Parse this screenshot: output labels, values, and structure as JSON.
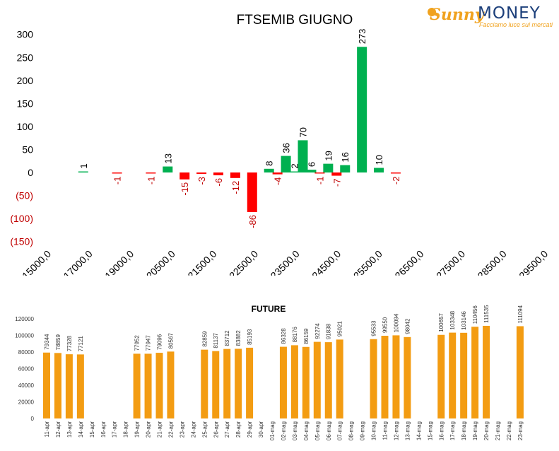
{
  "brand": {
    "logo_script": "Sunny",
    "logo_word": "MONEY",
    "tagline": "Facciamo luce sui mercati"
  },
  "colors": {
    "positive": "#00b050",
    "negative": "#ff0000",
    "future": "#f39c12",
    "text": "#000000",
    "negative_label": "#c00000",
    "logo_orange": "#f0a21e",
    "logo_blue": "#1c3f7a"
  },
  "chart_data": [
    {
      "type": "bar",
      "title": "FTSEMIB GIUGNO",
      "xlabel": "",
      "ylabel": "",
      "ylim": [
        -150,
        300
      ],
      "yticks": [
        300,
        250,
        200,
        150,
        100,
        50,
        0,
        -50,
        -100,
        -150
      ],
      "ytick_labels": [
        "300",
        "250",
        "200",
        "150",
        "100",
        "50",
        "0",
        "(50)",
        "(100)",
        "(150)"
      ],
      "xtick_labels": [
        "15000,0",
        "17000,0",
        "19000,0",
        "20500,0",
        "21500,0",
        "22500,0",
        "23500,0",
        "24500,0",
        "25500,0",
        "26500,0",
        "27500,0",
        "28500,0",
        "29500,0"
      ],
      "grid": false,
      "bars": [
        {
          "label": "1",
          "value": 1,
          "slot": 2
        },
        {
          "label": "-1",
          "value": -1,
          "slot": 4
        },
        {
          "label": "-1",
          "value": -1,
          "slot": 6
        },
        {
          "label": "13",
          "value": 13,
          "slot": 7
        },
        {
          "label": "-15",
          "value": -15,
          "slot": 8
        },
        {
          "label": "-3",
          "value": -3,
          "slot": 9
        },
        {
          "label": "-6",
          "value": -6,
          "slot": 10
        },
        {
          "label": "-12",
          "value": -12,
          "slot": 11
        },
        {
          "label": "-86",
          "value": -86,
          "slot": 12
        },
        {
          "label": "8",
          "value": 8,
          "slot": 13
        },
        {
          "label": "-4",
          "value": -4,
          "slot": 13.5
        },
        {
          "label": "36",
          "value": 36,
          "slot": 14
        },
        {
          "label": "2",
          "value": 2,
          "slot": 14.5
        },
        {
          "label": "70",
          "value": 70,
          "slot": 15
        },
        {
          "label": "6",
          "value": 6,
          "slot": 15.5
        },
        {
          "label": "-1",
          "value": -1,
          "slot": 16
        },
        {
          "label": "19",
          "value": 19,
          "slot": 16.5
        },
        {
          "label": "-7",
          "value": -7,
          "slot": 17
        },
        {
          "label": "16",
          "value": 16,
          "slot": 17.5
        },
        {
          "label": "273",
          "value": 273,
          "slot": 18.5
        },
        {
          "label": "10",
          "value": 10,
          "slot": 19.5
        },
        {
          "label": "-2",
          "value": -2,
          "slot": 20.5
        }
      ]
    },
    {
      "type": "bar",
      "title": "FUTURE",
      "xlabel": "",
      "ylabel": "",
      "ylim": [
        0,
        120000
      ],
      "yticks": [
        0,
        20000,
        40000,
        60000,
        80000,
        100000,
        120000
      ],
      "categories": [
        "11-apr",
        "12-apr",
        "13-apr",
        "14-apr",
        "15-apr",
        "16-apr",
        "17-apr",
        "18-apr",
        "19-apr",
        "20-apr",
        "21-apr",
        "22-apr",
        "23-apr",
        "24-apr",
        "25-apr",
        "26-apr",
        "27-apr",
        "28-apr",
        "29-apr",
        "30-apr",
        "01-mag",
        "02-mag",
        "03-mag",
        "04-mag",
        "05-mag",
        "06-mag",
        "07-mag",
        "08-mag",
        "09-mag",
        "10-mag",
        "11-mag",
        "12-mag",
        "13-mag",
        "14-mag",
        "15-mag",
        "16-mag",
        "17-mag",
        "18-mag",
        "19-mag",
        "20-mag",
        "21-mag",
        "22-mag",
        "23-mag"
      ],
      "values": [
        79344,
        78859,
        77328,
        77121,
        null,
        null,
        null,
        null,
        77952,
        77947,
        79096,
        80567,
        null,
        null,
        82859,
        81137,
        83712,
        83882,
        85193,
        null,
        null,
        86328,
        88176,
        86159,
        92274,
        91838,
        95021,
        null,
        null,
        95533,
        99550,
        100094,
        98042,
        null,
        null,
        100657,
        103348,
        103146,
        110456,
        111535,
        null,
        null,
        111094
      ]
    }
  ]
}
